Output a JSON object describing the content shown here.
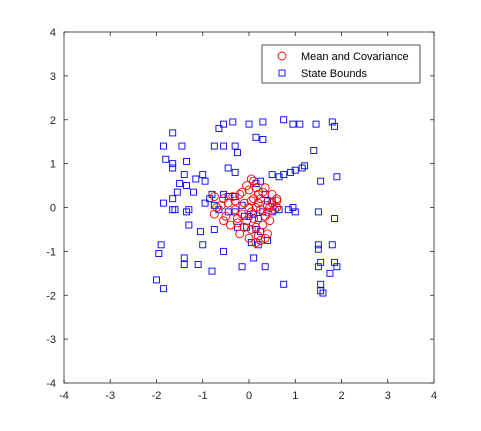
{
  "chart_data": {
    "type": "scatter",
    "xlim": [
      -4,
      4
    ],
    "ylim": [
      -4,
      4
    ],
    "xticks": [
      -4,
      -3,
      -2,
      -1,
      0,
      1,
      2,
      3,
      4
    ],
    "yticks": [
      -4,
      -3,
      -2,
      -1,
      0,
      1,
      2,
      3,
      4
    ],
    "grid": false,
    "legend_position": "top-right",
    "colors": {
      "axes": "#262626",
      "red": "#ff0000",
      "blue": "#0000ff",
      "legend_border": "#262626"
    },
    "series": [
      {
        "name": "Mean and Covariance",
        "marker": "circle",
        "color": "#ff0000",
        "points": [
          [
            0.0,
            0.4
          ],
          [
            -0.2,
            0.3
          ],
          [
            0.15,
            0.45
          ],
          [
            0.35,
            0.45
          ],
          [
            -0.35,
            0.25
          ],
          [
            0.1,
            0.2
          ],
          [
            -0.1,
            0.1
          ],
          [
            0.2,
            0.1
          ],
          [
            0.4,
            0.05
          ],
          [
            0.5,
            0.1
          ],
          [
            -0.55,
            0.2
          ],
          [
            -0.75,
            0.25
          ],
          [
            -0.7,
            0.0
          ],
          [
            -0.75,
            -0.15
          ],
          [
            -0.5,
            -0.2
          ],
          [
            -0.3,
            -0.05
          ],
          [
            -0.15,
            -0.15
          ],
          [
            0.0,
            0.0
          ],
          [
            0.05,
            -0.1
          ],
          [
            0.25,
            -0.05
          ],
          [
            0.4,
            -0.1
          ],
          [
            0.55,
            -0.05
          ],
          [
            0.6,
            0.15
          ],
          [
            0.45,
            -0.3
          ],
          [
            0.3,
            -0.4
          ],
          [
            0.15,
            -0.45
          ],
          [
            0.05,
            -0.5
          ],
          [
            -0.1,
            -0.45
          ],
          [
            -0.25,
            -0.35
          ],
          [
            -0.4,
            -0.4
          ],
          [
            -0.55,
            -0.3
          ],
          [
            -0.2,
            -0.6
          ],
          [
            0.0,
            -0.7
          ],
          [
            0.2,
            -0.65
          ],
          [
            0.4,
            -0.6
          ],
          [
            0.15,
            -0.8
          ],
          [
            0.25,
            -0.75
          ],
          [
            0.35,
            -0.7
          ],
          [
            0.1,
            0.6
          ],
          [
            0.05,
            0.65
          ],
          [
            -0.05,
            0.5
          ],
          [
            0.3,
            0.35
          ],
          [
            0.5,
            0.3
          ],
          [
            0.6,
            0.2
          ],
          [
            0.6,
            0.0
          ],
          [
            0.45,
            0.0
          ],
          [
            -0.45,
            0.1
          ],
          [
            -0.6,
            0.05
          ],
          [
            0.1,
            -0.25
          ],
          [
            -0.05,
            -0.3
          ],
          [
            -0.3,
            0.15
          ],
          [
            0.2,
            0.3
          ],
          [
            -0.15,
            0.35
          ],
          [
            0.35,
            -0.2
          ],
          [
            0.15,
            0.0
          ],
          [
            -0.25,
            -0.25
          ],
          [
            0.05,
            0.15
          ],
          [
            0.25,
            0.2
          ]
        ]
      },
      {
        "name": "State Bounds",
        "marker": "square",
        "color": "#0000ff",
        "points": [
          [
            -1.65,
            1.7
          ],
          [
            -1.85,
            1.4
          ],
          [
            -1.45,
            1.4
          ],
          [
            -1.8,
            1.1
          ],
          [
            -1.65,
            1.0
          ],
          [
            -1.65,
            0.9
          ],
          [
            -1.35,
            1.05
          ],
          [
            -0.65,
            1.8
          ],
          [
            -0.55,
            1.9
          ],
          [
            -0.35,
            1.95
          ],
          [
            -0.75,
            1.4
          ],
          [
            -0.55,
            1.4
          ],
          [
            -0.3,
            1.4
          ],
          [
            -0.25,
            1.25
          ],
          [
            0.0,
            1.9
          ],
          [
            0.15,
            1.6
          ],
          [
            0.3,
            1.55
          ],
          [
            0.3,
            1.95
          ],
          [
            0.75,
            2.0
          ],
          [
            0.95,
            1.9
          ],
          [
            1.1,
            1.9
          ],
          [
            1.45,
            1.9
          ],
          [
            1.8,
            1.95
          ],
          [
            1.85,
            1.85
          ],
          [
            1.4,
            1.3
          ],
          [
            -1.4,
            0.75
          ],
          [
            -1.15,
            0.65
          ],
          [
            -1.0,
            0.75
          ],
          [
            -0.45,
            0.9
          ],
          [
            -0.3,
            0.8
          ],
          [
            -1.5,
            0.55
          ],
          [
            -1.35,
            0.5
          ],
          [
            -1.55,
            0.35
          ],
          [
            -1.2,
            0.35
          ],
          [
            -0.95,
            0.6
          ],
          [
            -1.65,
            0.2
          ],
          [
            -1.85,
            0.1
          ],
          [
            -1.6,
            -0.05
          ],
          [
            -1.65,
            -0.05
          ],
          [
            -1.3,
            -0.05
          ],
          [
            -1.35,
            -0.1
          ],
          [
            -0.8,
            0.3
          ],
          [
            -0.85,
            0.2
          ],
          [
            -0.55,
            0.3
          ],
          [
            -0.45,
            0.25
          ],
          [
            -0.3,
            0.25
          ],
          [
            -0.95,
            0.1
          ],
          [
            -0.75,
            0.05
          ],
          [
            -0.65,
            -0.05
          ],
          [
            -0.45,
            -0.1
          ],
          [
            -0.3,
            -0.1
          ],
          [
            -0.15,
            0.05
          ],
          [
            -0.1,
            -0.2
          ],
          [
            0.0,
            -0.2
          ],
          [
            0.1,
            -0.15
          ],
          [
            0.2,
            -0.25
          ],
          [
            0.3,
            -0.1
          ],
          [
            0.15,
            0.55
          ],
          [
            0.25,
            0.6
          ],
          [
            0.35,
            0.3
          ],
          [
            0.4,
            0.15
          ],
          [
            0.5,
            0.15
          ],
          [
            0.5,
            0.75
          ],
          [
            0.65,
            0.7
          ],
          [
            0.75,
            0.75
          ],
          [
            0.9,
            0.8
          ],
          [
            1.0,
            0.85
          ],
          [
            1.15,
            0.9
          ],
          [
            1.2,
            0.95
          ],
          [
            0.5,
            -0.1
          ],
          [
            0.65,
            -0.05
          ],
          [
            0.85,
            -0.05
          ],
          [
            1.0,
            -0.1
          ],
          [
            0.95,
            0.0
          ],
          [
            1.55,
            0.6
          ],
          [
            1.9,
            0.7
          ],
          [
            1.5,
            -0.1
          ],
          [
            1.85,
            -0.25
          ],
          [
            -1.3,
            -0.4
          ],
          [
            -1.05,
            -0.55
          ],
          [
            -0.75,
            -0.5
          ],
          [
            -0.25,
            -0.45
          ],
          [
            -0.05,
            -0.45
          ],
          [
            0.15,
            -0.5
          ],
          [
            0.25,
            -0.55
          ],
          [
            0.4,
            -0.75
          ],
          [
            -1.9,
            -0.85
          ],
          [
            -1.95,
            -1.05
          ],
          [
            -1.4,
            -1.15
          ],
          [
            -1.4,
            -1.3
          ],
          [
            -1.1,
            -1.3
          ],
          [
            -1.0,
            -0.85
          ],
          [
            -0.8,
            -1.45
          ],
          [
            -0.55,
            -1.0
          ],
          [
            -0.15,
            -1.35
          ],
          [
            0.1,
            -1.15
          ],
          [
            0.35,
            -1.35
          ],
          [
            0.2,
            -0.85
          ],
          [
            0.05,
            -0.8
          ],
          [
            -2.0,
            -1.65
          ],
          [
            -1.85,
            -1.85
          ],
          [
            0.75,
            -1.75
          ],
          [
            1.5,
            -0.85
          ],
          [
            1.5,
            -0.95
          ],
          [
            1.55,
            -1.25
          ],
          [
            1.5,
            -1.35
          ],
          [
            1.55,
            -1.75
          ],
          [
            1.55,
            -1.9
          ],
          [
            1.6,
            -1.95
          ],
          [
            1.75,
            -1.5
          ],
          [
            1.85,
            -1.25
          ],
          [
            1.9,
            -1.35
          ],
          [
            1.8,
            -0.85
          ]
        ]
      }
    ]
  }
}
